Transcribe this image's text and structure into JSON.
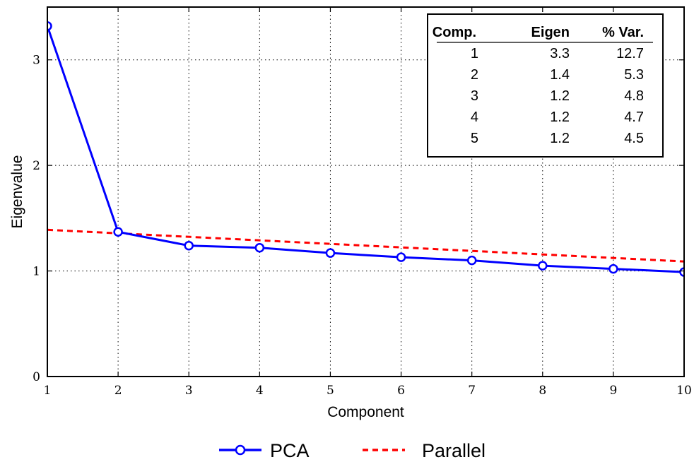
{
  "chart_data": {
    "type": "line",
    "xlabel": "Component",
    "ylabel": "Eigenvalue",
    "xlim": [
      1,
      10
    ],
    "ylim": [
      0,
      3.5
    ],
    "xticks": [
      "1",
      "2",
      "3",
      "4",
      "5",
      "6",
      "7",
      "8",
      "9",
      "10"
    ],
    "yticks": [
      "0",
      "1",
      "2",
      "3"
    ],
    "grid": true,
    "legend_position": "bottom",
    "series": [
      {
        "name": "PCA",
        "color": "#0000ff",
        "style": "solid-with-circle-markers",
        "x": [
          1,
          2,
          3,
          4,
          5,
          6,
          7,
          8,
          9,
          10
        ],
        "y": [
          3.32,
          1.37,
          1.24,
          1.22,
          1.17,
          1.13,
          1.1,
          1.05,
          1.02,
          0.99
        ]
      },
      {
        "name": "Parallel",
        "color": "#ff0000",
        "style": "dashed",
        "x": [
          1,
          10
        ],
        "y": [
          1.39,
          1.09
        ]
      }
    ],
    "table": {
      "headers": [
        "Comp.",
        "Eigen",
        "% Var."
      ],
      "rows": [
        [
          "1",
          "3.3",
          "12.7"
        ],
        [
          "2",
          "1.4",
          "5.3"
        ],
        [
          "3",
          "1.2",
          "4.8"
        ],
        [
          "4",
          "1.2",
          "4.7"
        ],
        [
          "5",
          "1.2",
          "4.5"
        ]
      ]
    }
  }
}
